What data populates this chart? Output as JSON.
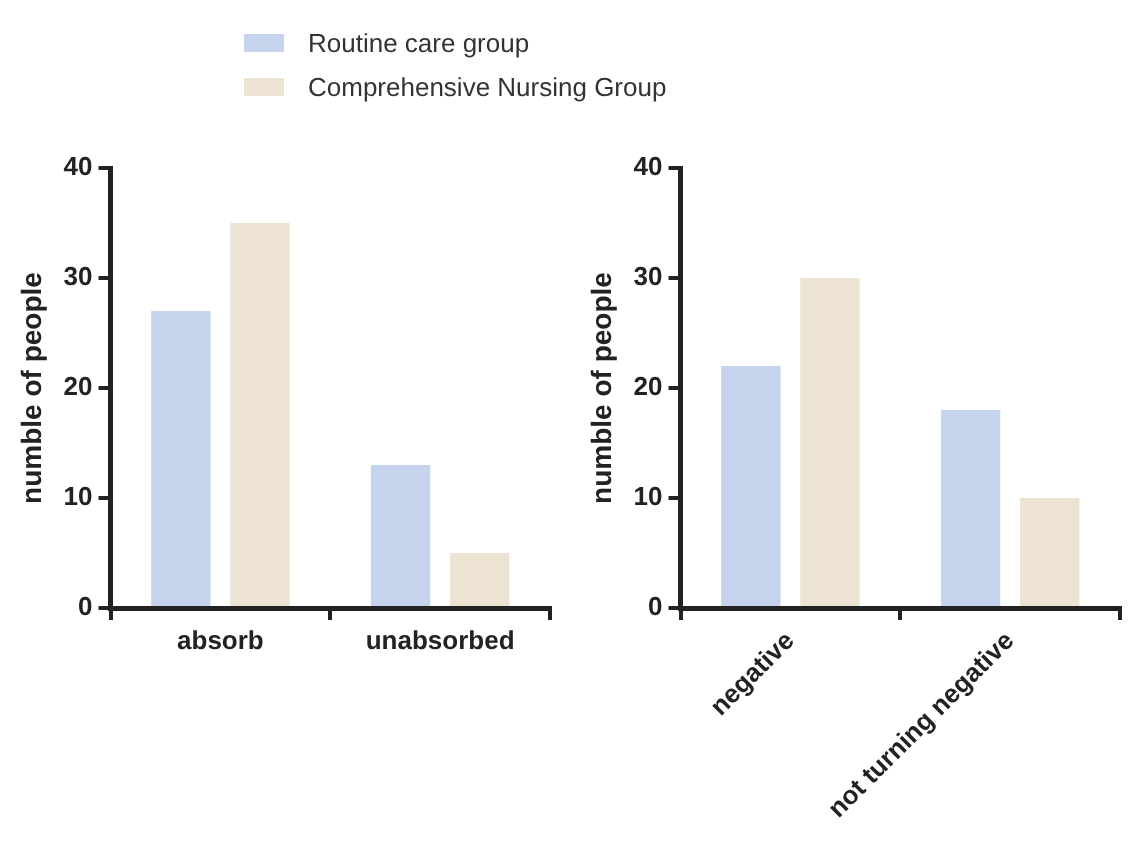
{
  "chart_data": [
    {
      "type": "bar",
      "categories": [
        "absorb",
        "unabsorbed"
      ],
      "ylabel": "numble of people",
      "ylim": [
        0,
        40
      ],
      "yticks": [
        0,
        10,
        20,
        30,
        40
      ],
      "grid": false,
      "legend": "top",
      "series": [
        {
          "name": "Routine care group",
          "color": "#c5d3ec",
          "values": [
            27,
            13
          ]
        },
        {
          "name": "Comprehensive Nursing Group",
          "color": "#ece3d3",
          "values": [
            35,
            5
          ]
        }
      ]
    },
    {
      "type": "bar",
      "categories": [
        "negative",
        "not turning negative"
      ],
      "ylabel": "numble of people",
      "ylim": [
        0,
        40
      ],
      "yticks": [
        0,
        10,
        20,
        30,
        40
      ],
      "grid": false,
      "legend": false,
      "series": [
        {
          "color": "#c5d3ec",
          "values": [
            22,
            18
          ]
        },
        {
          "color": "#ece3d3",
          "values": [
            30,
            10
          ]
        }
      ]
    }
  ]
}
